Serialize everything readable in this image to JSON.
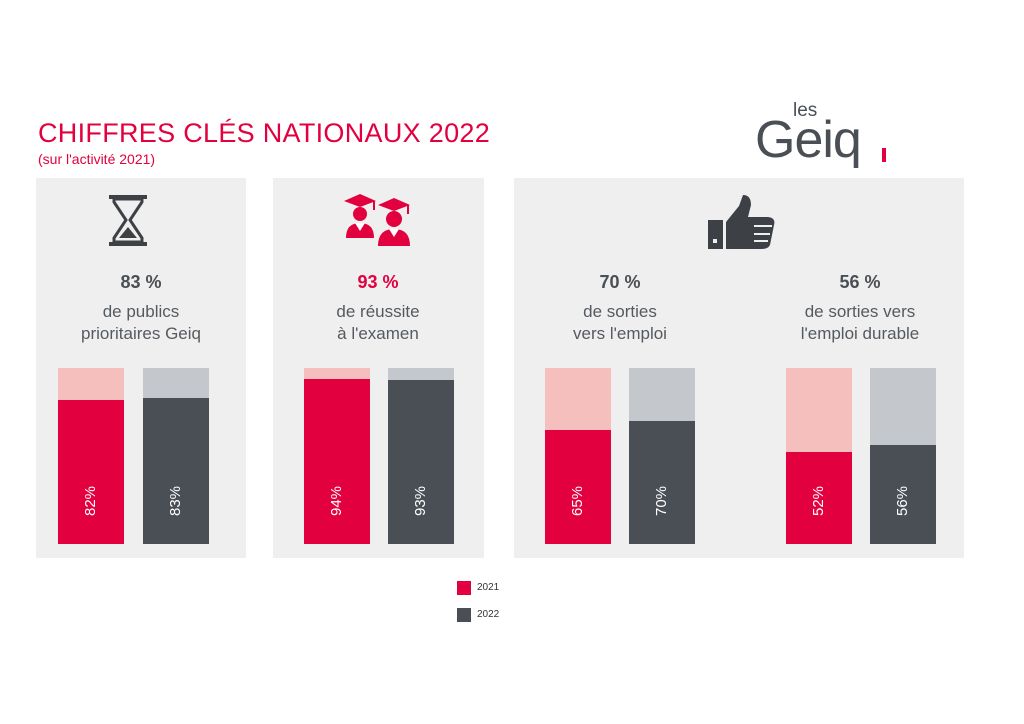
{
  "header": {
    "title": "CHIFFRES CLÉS NATIONAUX 2022",
    "subtitle": "(sur l'activité 2021)"
  },
  "logo": {
    "top": "les",
    "main": "Geiq"
  },
  "colors": {
    "accent": "#e2003f",
    "accent_light": "#f5bfbd",
    "dark": "#4a4f55",
    "dark_light": "#c4c8cc",
    "panel": "#efefef",
    "icon": "#3d4146"
  },
  "stats": [
    {
      "percent": "83 %",
      "line1": "de publics",
      "line2": "prioritaires Geiq",
      "pct_color": "#4a4f55",
      "icon": "hourglass-icon"
    },
    {
      "percent": "93 %",
      "line1": "de réussite",
      "line2": "à l'examen",
      "pct_color": "#e2003f",
      "icon": "graduates-icon"
    },
    {
      "percent": "70 %",
      "line1": "de sorties",
      "line2": "vers l'emploi",
      "pct_color": "#4a4f55",
      "icon": "thumbs-up-icon"
    },
    {
      "percent": "56 %",
      "line1": "de sorties vers",
      "line2": "l'emploi durable",
      "pct_color": "#4a4f55",
      "icon": ""
    }
  ],
  "chart_data": {
    "type": "bar",
    "categories": [
      "de publics prioritaires Geiq",
      "de réussite à l'examen",
      "de sorties vers l'emploi",
      "de sorties vers l'emploi durable"
    ],
    "series": [
      {
        "name": "2021",
        "values": [
          82,
          94,
          65,
          52
        ],
        "labels": [
          "82%",
          "94%",
          "65%",
          "52%"
        ]
      },
      {
        "name": "2022",
        "values": [
          83,
          93,
          70,
          56
        ],
        "labels": [
          "83%",
          "93%",
          "70%",
          "56%"
        ]
      }
    ],
    "ylim": [
      0,
      100
    ],
    "title": "",
    "xlabel": "",
    "ylabel": ""
  },
  "legend": [
    {
      "label": "2021"
    },
    {
      "label": "2022"
    }
  ]
}
